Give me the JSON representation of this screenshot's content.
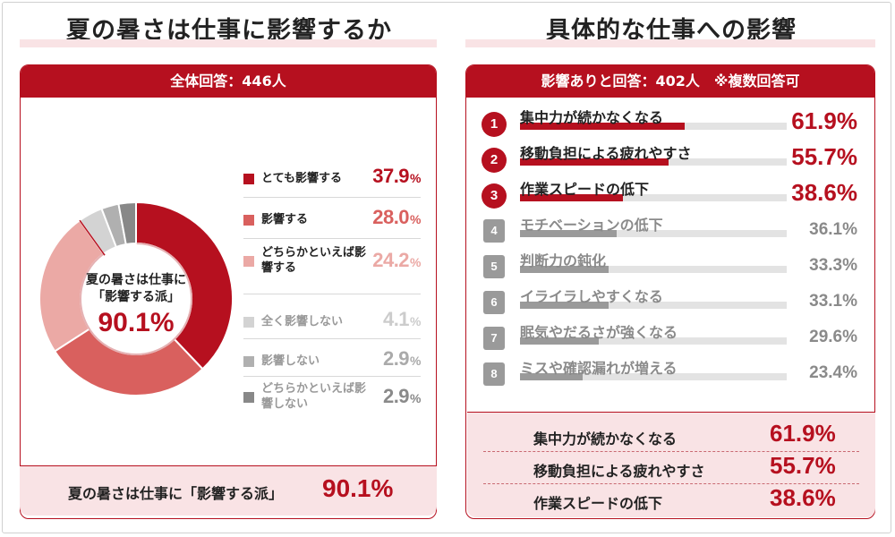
{
  "left": {
    "title": "夏の暑さは仕事に影響するか",
    "header": "全体回答：446人",
    "center_label_1": "夏の暑さは仕事に",
    "center_label_2": "「影響する派」",
    "center_value": "90.1%",
    "summary_label": "夏の暑さは仕事に「影響する派」",
    "summary_value": "90.1%"
  },
  "right": {
    "title": "具体的な仕事への影響",
    "header": "影響ありと回答：402人　※複数回答可",
    "summary": [
      {
        "label": "集中力が続かなくなる",
        "value": "61.9%"
      },
      {
        "label": "移動負担による疲れやすさ",
        "value": "55.7%"
      },
      {
        "label": "作業スピードの低下",
        "value": "38.6%"
      }
    ]
  },
  "chart_data": [
    {
      "type": "pie",
      "series": [
        {
          "label": "とても影響する",
          "value": 37.9,
          "display": "37.9",
          "unit": "%",
          "color": "#b6101f"
        },
        {
          "label": "影響する",
          "value": 28.0,
          "display": "28.0",
          "unit": "%",
          "color": "#d9605e"
        },
        {
          "label": "どちらかといえば影響する",
          "value": 24.2,
          "display": "24.2",
          "unit": "%",
          "color": "#eba9a5"
        },
        {
          "label": "全く影響しない",
          "value": 4.1,
          "display": "4.1",
          "unit": "%",
          "color": "#d3d3d3"
        },
        {
          "label": "影響しない",
          "value": 2.9,
          "display": "2.9",
          "unit": "%",
          "color": "#b0b0b0"
        },
        {
          "label": "どちらかといえば影響しない",
          "value": 2.9,
          "display": "2.9",
          "unit": "%",
          "color": "#888888"
        }
      ]
    },
    {
      "type": "bar",
      "series": [
        {
          "rank": "1",
          "label": "集中力が続かなくなる",
          "value": 61.9,
          "display": "61.9%"
        },
        {
          "rank": "2",
          "label": "移動負担による疲れやすさ",
          "value": 55.7,
          "display": "55.7%"
        },
        {
          "rank": "3",
          "label": "作業スピードの低下",
          "value": 38.6,
          "display": "38.6%"
        },
        {
          "rank": "4",
          "label": "モチベーションの低下",
          "value": 36.1,
          "display": "36.1%"
        },
        {
          "rank": "5",
          "label": "判断力の鈍化",
          "value": 33.3,
          "display": "33.3%"
        },
        {
          "rank": "6",
          "label": "イライラしやすくなる",
          "value": 33.1,
          "display": "33.1%"
        },
        {
          "rank": "7",
          "label": "眠気やだるさが強くなる",
          "value": 29.6,
          "display": "29.6%"
        },
        {
          "rank": "8",
          "label": "ミスや確認漏れが増える",
          "value": 23.4,
          "display": "23.4%"
        }
      ],
      "colors": {
        "top": "#b6101f",
        "rest": "#9a9a9a",
        "top_text": "#222222",
        "rest_text": "#8a8a8a"
      }
    }
  ]
}
